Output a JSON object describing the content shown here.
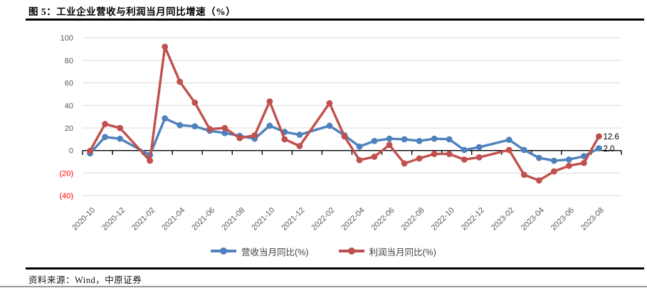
{
  "header": {
    "title": "图 5：工业企业营收与利润当月同比增速（%）"
  },
  "footer": {
    "source_label": "资料来源：Wind，中原证券"
  },
  "colors": {
    "revenue_blue": "#4F81BD",
    "profit_red": "#C0504D",
    "gridline": "#D9D9D9",
    "axis_black": "#000000",
    "tick_label_gray": "#595959",
    "negative_label_red": "#FF0000"
  },
  "chart_data": {
    "type": "line",
    "title": "工业企业营收与利润当月同比增速（%）",
    "x": [
      "2020-10",
      "2020-11",
      "2020-12",
      "2021-02",
      "2021-03",
      "2021-04",
      "2021-05",
      "2021-06",
      "2021-07",
      "2021-08",
      "2021-09",
      "2021-10",
      "2021-11",
      "2021-12",
      "2022-02",
      "2022-03",
      "2022-04",
      "2022-05",
      "2022-06",
      "2022-07",
      "2022-08",
      "2022-09",
      "2022-10",
      "2022-11",
      "2022-12",
      "2023-02",
      "2023-03",
      "2023-04",
      "2023-05",
      "2023-06",
      "2023-07",
      "2023-08"
    ],
    "series": [
      {
        "name": "营收当月同比(%)",
        "color": "#4F81BD",
        "values": [
          -2.5,
          12,
          10.5,
          -4,
          28.5,
          22.5,
          21.5,
          17.5,
          15.5,
          13,
          10.5,
          22,
          16.5,
          14,
          22,
          13.5,
          3.5,
          8.5,
          10.5,
          10,
          8.5,
          10.5,
          10,
          0.5,
          3,
          9.5,
          0.5,
          -6.5,
          -9,
          -8,
          -5,
          2.0
        ]
      },
      {
        "name": "利润当月同比(%)",
        "color": "#C0504D",
        "values": [
          -0.3,
          23.5,
          20,
          -9,
          92,
          61,
          42.5,
          19,
          20,
          11,
          13.5,
          43.5,
          10,
          4,
          42,
          12.5,
          -8.5,
          -5.5,
          5,
          -11.5,
          -7,
          -3,
          -3,
          -8,
          -6,
          0.5,
          -21.5,
          -26.5,
          -18.5,
          -13.5,
          -11,
          12.6
        ]
      }
    ],
    "point_labels": [
      {
        "series": 1,
        "x": "2023-08",
        "text": "12.6"
      },
      {
        "series": 0,
        "x": "2023-08",
        "text": "2.0"
      }
    ],
    "x_tick_labels": [
      "2020-10",
      "2020-12",
      "2021-02",
      "2021-04",
      "2021-06",
      "2021-08",
      "2021-10",
      "2021-12",
      "2022-02",
      "2022-04",
      "2022-06",
      "2022-08",
      "2022-10",
      "2022-12",
      "2023-02",
      "2023-04",
      "2023-06",
      "2023-08"
    ],
    "y_ticks": [
      100,
      80,
      60,
      40,
      20,
      0,
      -20,
      -40
    ],
    "y_tick_labels": [
      "100",
      "80",
      "60",
      "40",
      "20",
      "0",
      "(20)",
      "(40)"
    ],
    "ylim": [
      -40,
      100
    ],
    "grid": true,
    "legend_position": "bottom"
  }
}
